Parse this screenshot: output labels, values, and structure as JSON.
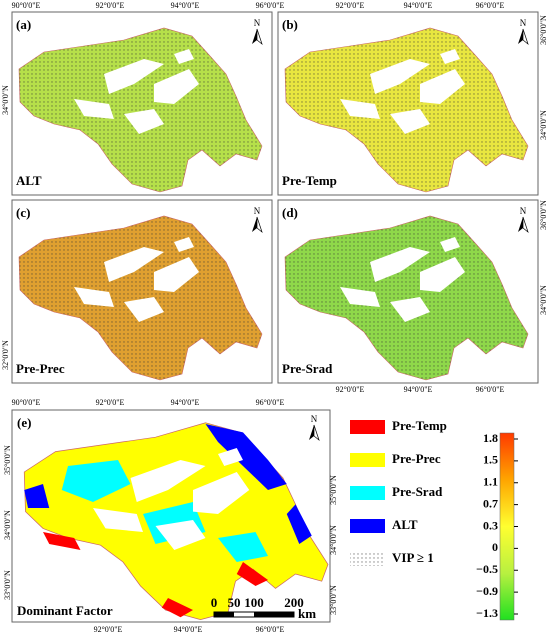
{
  "panels": [
    {
      "letter": "(a)",
      "name": "ALT"
    },
    {
      "letter": "(b)",
      "name": "Pre-Temp"
    },
    {
      "letter": "(c)",
      "name": "Pre-Prec"
    },
    {
      "letter": "(d)",
      "name": "Pre-Srad"
    }
  ],
  "dominant": {
    "letter": "(e)",
    "name": "Dominant Factor"
  },
  "north": "N",
  "lon_labels": [
    "90°0'0\"E",
    "92°0'0\"E",
    "94°0'0\"E",
    "96°0'0\"E"
  ],
  "lat_labels": [
    "32°0'0\"N",
    "34°0'0\"N",
    "36°0'0\"N",
    "33°0'0\"N",
    "35°0'0\"N"
  ],
  "legend": {
    "items": [
      {
        "label": "Pre-Temp",
        "color": "#ff0000"
      },
      {
        "label": "Pre-Prec",
        "color": "#ffff00"
      },
      {
        "label": "Pre-Srad",
        "color": "#00ffff"
      },
      {
        "label": "ALT",
        "color": "#0000ff"
      }
    ],
    "vip": "VIP ≥ 1"
  },
  "colorbar": {
    "ticks": [
      1.8,
      1.5,
      1.1,
      0.7,
      0.3,
      0,
      {
        "value": -0.5,
        "label": "−0.5"
      },
      {
        "value": -0.9,
        "label": "−0.9"
      },
      {
        "value": -1.3,
        "label": "−1.3"
      }
    ]
  },
  "scalebar": {
    "ticks": [
      0,
      50,
      100,
      200
    ],
    "unit": "km"
  }
}
